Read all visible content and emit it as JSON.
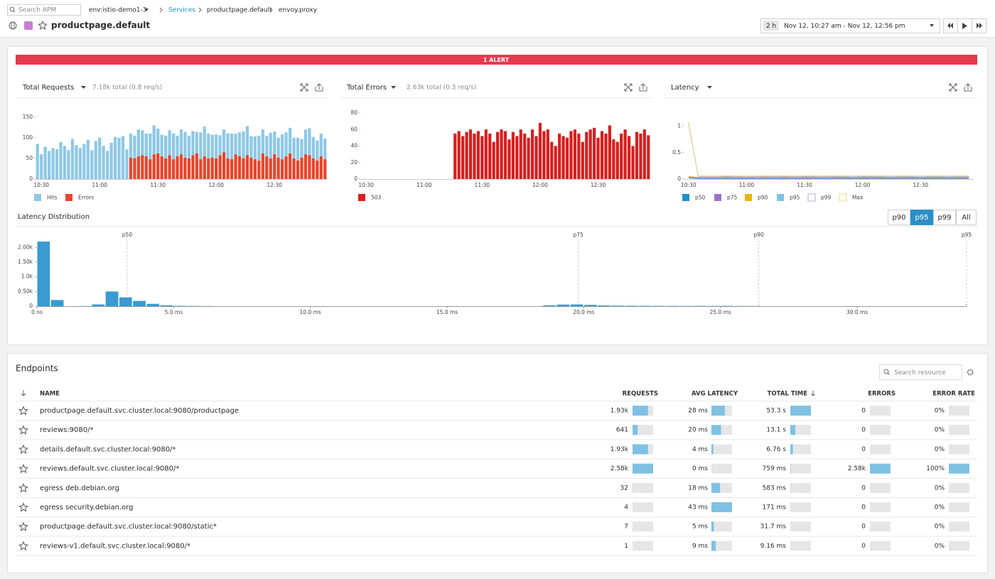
{
  "header": {
    "search_placeholder": "Search APM",
    "environment": "env:istio-demo1-3",
    "breadcrumbs": [
      "Services",
      "productpage.default",
      "envoy.proxy"
    ],
    "title": "productpage.default",
    "time_span": "2 h",
    "time_range": "Nov 12, 10:27 am - Nov 12, 12:56 pm"
  },
  "alert": "1 ALERT",
  "charts": [
    {
      "type": "bar",
      "stacked": true,
      "title": "Total Requests",
      "summary": "7.18k total (0.8 req/s)",
      "categories": [
        null,
        "10:30",
        null,
        null,
        null,
        null,
        null,
        null,
        null,
        null,
        null,
        null,
        null,
        null,
        null,
        null,
        "11:00",
        null,
        null,
        null,
        null,
        null,
        null,
        null,
        null,
        null,
        null,
        null,
        null,
        null,
        null,
        "11:30",
        null,
        null,
        null,
        null,
        null,
        null,
        null,
        null,
        null,
        null,
        null,
        null,
        null,
        null,
        "12:00",
        null,
        null,
        null,
        null,
        null,
        null,
        null,
        null,
        null,
        null,
        null,
        null,
        null,
        null,
        "12:30",
        null,
        null,
        null,
        null,
        null,
        null,
        null,
        null,
        null,
        null,
        null,
        null,
        null
      ],
      "series": [
        {
          "name": "Hits",
          "color": "#8ec8e6",
          "values": [
            85,
            60,
            78,
            68,
            75,
            72,
            90,
            80,
            70,
            97,
            82,
            75,
            85,
            95,
            70,
            92,
            100,
            80,
            68,
            88,
            102,
            100,
            104,
            72,
            58,
            55,
            65,
            60,
            55,
            62,
            70,
            60,
            52,
            55,
            60,
            63,
            50,
            60,
            62,
            55,
            58,
            52,
            65,
            72,
            60,
            55,
            58,
            48,
            55,
            60,
            62,
            50,
            58,
            65,
            70,
            52,
            55,
            60,
            58,
            50,
            62,
            55,
            48,
            60,
            58,
            62,
            50,
            55,
            45,
            60,
            65,
            52,
            48,
            55,
            50
          ]
        },
        {
          "name": "Errors",
          "color": "#e8452c",
          "values": [
            0,
            0,
            0,
            0,
            0,
            0,
            0,
            0,
            0,
            0,
            0,
            0,
            0,
            0,
            0,
            0,
            0,
            0,
            0,
            0,
            0,
            0,
            0,
            0,
            52,
            50,
            55,
            58,
            55,
            48,
            60,
            62,
            55,
            50,
            58,
            48,
            55,
            60,
            52,
            50,
            58,
            62,
            48,
            55,
            50,
            52,
            50,
            58,
            65,
            50,
            48,
            60,
            55,
            50,
            58,
            52,
            48,
            45,
            62,
            55,
            50,
            60,
            52,
            48,
            55,
            62,
            50,
            45,
            52,
            60,
            58,
            50,
            45,
            55,
            48
          ]
        }
      ],
      "ylim": [
        0,
        160
      ],
      "yticks": [
        0,
        50,
        100,
        150
      ]
    },
    {
      "type": "bar",
      "stacked": false,
      "title": "Total Errors",
      "summary": "2.63k total (0.3 req/s)",
      "categories": [
        null,
        "10:30",
        null,
        null,
        null,
        null,
        null,
        null,
        null,
        null,
        null,
        null,
        null,
        null,
        null,
        null,
        "11:00",
        null,
        null,
        null,
        null,
        null,
        null,
        null,
        null,
        null,
        null,
        null,
        null,
        null,
        null,
        "11:30",
        null,
        null,
        null,
        null,
        null,
        null,
        null,
        null,
        null,
        null,
        null,
        null,
        null,
        null,
        "12:00",
        null,
        null,
        null,
        null,
        null,
        null,
        null,
        null,
        null,
        null,
        null,
        null,
        null,
        null,
        "12:30",
        null,
        null,
        null,
        null,
        null,
        null,
        null,
        null,
        null,
        null,
        null,
        null,
        null
      ],
      "series": [
        {
          "name": "503",
          "color": "#d71f1f",
          "values": [
            0,
            0,
            0,
            0,
            0,
            0,
            0,
            0,
            0,
            0,
            0,
            0,
            0,
            0,
            0,
            0,
            0,
            0,
            0,
            0,
            0,
            0,
            0,
            0,
            55,
            58,
            52,
            57,
            60,
            55,
            58,
            52,
            60,
            55,
            45,
            57,
            60,
            58,
            48,
            57,
            52,
            60,
            55,
            50,
            60,
            52,
            68,
            58,
            60,
            45,
            40,
            55,
            52,
            50,
            58,
            60,
            55,
            45,
            57,
            60,
            62,
            50,
            58,
            55,
            65,
            48,
            45,
            55,
            60,
            52,
            40,
            57,
            55,
            60,
            53
          ]
        }
      ],
      "ylim": [
        0,
        80
      ],
      "yticks": [
        0,
        20,
        40,
        60,
        80
      ]
    },
    {
      "type": "line",
      "title": "Latency",
      "categories": [
        "10:30",
        null,
        null,
        null,
        null,
        null,
        "11:00",
        null,
        null,
        null,
        null,
        null,
        "11:30",
        null,
        null,
        null,
        null,
        null,
        "12:00",
        null,
        null,
        null,
        null,
        null,
        "12:30",
        null,
        null,
        null,
        null,
        null
      ],
      "series": [
        {
          "name": "p50",
          "color": "#1f8fc9",
          "values": [
            0.02,
            0.01,
            0.01,
            0.01,
            0.01,
            0.01,
            0.01,
            0.01,
            0.01,
            0.01,
            0.01,
            0.01,
            0.01,
            0.01,
            0.01,
            0.01,
            0.01,
            0.01,
            0.01,
            0.01,
            0.01,
            0.01,
            0.01,
            0.01,
            0.01,
            0.01,
            0.01,
            0.01,
            0.01,
            0.01
          ]
        },
        {
          "name": "p75",
          "color": "#9b72c5",
          "values": [
            0.03,
            0.02,
            0.02,
            0.02,
            0.02,
            0.02,
            0.02,
            0.02,
            0.02,
            0.02,
            0.02,
            0.02,
            0.02,
            0.02,
            0.02,
            0.02,
            0.02,
            0.02,
            0.02,
            0.02,
            0.02,
            0.02,
            0.02,
            0.02,
            0.02,
            0.02,
            0.02,
            0.02,
            0.02,
            0.02
          ]
        },
        {
          "name": "p90",
          "color": "#e6b417",
          "values": [
            0.05,
            0.03,
            0.03,
            0.03,
            0.03,
            0.03,
            0.04,
            0.03,
            0.03,
            0.03,
            0.03,
            0.03,
            0.03,
            0.03,
            0.03,
            0.03,
            0.03,
            0.03,
            0.03,
            0.03,
            0.03,
            0.03,
            0.03,
            0.03,
            0.03,
            0.03,
            0.03,
            0.03,
            0.03,
            0.03
          ]
        },
        {
          "name": "p95",
          "color": "#7fc1e3",
          "values": [
            1.05,
            0.05,
            0.05,
            0.05,
            0.04,
            0.05,
            0.05,
            0.05,
            0.04,
            0.05,
            0.04,
            0.05,
            0.04,
            0.04,
            0.05,
            0.04,
            0.04,
            0.03,
            0.04,
            0.04,
            0.04,
            0.03,
            0.04,
            0.04,
            0.03,
            0.04,
            0.04,
            0.03,
            0.04,
            0.04
          ]
        },
        {
          "name": "p99",
          "color": "#b9a9d9",
          "marker": "outline",
          "values": [
            1.06,
            0.05,
            0.05,
            0.05,
            0.05,
            0.05,
            0.05,
            0.05,
            0.05,
            0.05,
            0.05,
            0.05,
            0.05,
            0.05,
            0.05,
            0.05,
            0.05,
            0.05,
            0.05,
            0.05,
            0.05,
            0.05,
            0.05,
            0.05,
            0.05,
            0.05,
            0.05,
            0.05,
            0.05,
            0.05
          ]
        },
        {
          "name": "Max",
          "color": "#f2d98a",
          "marker": "outline",
          "values": [
            1.08,
            0.06,
            0.06,
            0.06,
            0.06,
            0.06,
            0.06,
            0.06,
            0.06,
            0.06,
            0.06,
            0.06,
            0.06,
            0.06,
            0.06,
            0.06,
            0.06,
            0.06,
            0.06,
            0.06,
            0.06,
            0.06,
            0.06,
            0.06,
            0.06,
            0.06,
            0.06,
            0.06,
            0.06,
            0.06
          ]
        }
      ],
      "ylim": [
        0,
        1.25
      ],
      "yticks": [
        0,
        0.5,
        1
      ]
    },
    {
      "type": "histogram",
      "title": "Latency Distribution",
      "color": "#3a9ad1",
      "bins": [
        0,
        0.5,
        1,
        1.5,
        2,
        2.5,
        3,
        3.5,
        4,
        4.5,
        5,
        5.5,
        6,
        6.5,
        7,
        7.5,
        8,
        8.5,
        9,
        9.5,
        10,
        10.5,
        11,
        11.5,
        12,
        12.5,
        13,
        13.5,
        14,
        14.5,
        15,
        15.5,
        16,
        16.5,
        17,
        17.5,
        18,
        18.5,
        19,
        19.5,
        20,
        20.5,
        21,
        21.5,
        22,
        22.5,
        23,
        23.5,
        24,
        24.5,
        25,
        25.5,
        26,
        26.5,
        27,
        27.5,
        28,
        28.5,
        29,
        29.5,
        30,
        30.5,
        31,
        31.5,
        32,
        32.5,
        33,
        33.5,
        34
      ],
      "counts": [
        2200,
        210,
        0,
        5,
        60,
        500,
        300,
        180,
        80,
        30,
        12,
        8,
        5,
        0,
        0,
        0,
        0,
        0,
        0,
        0,
        0,
        0,
        0,
        0,
        0,
        0,
        0,
        0,
        0,
        0,
        0,
        0,
        0,
        0,
        0,
        0,
        0,
        30,
        55,
        60,
        45,
        25,
        18,
        15,
        12,
        10,
        10,
        8,
        10,
        8,
        10,
        6,
        5,
        0,
        0,
        0,
        0,
        0,
        0,
        0,
        0,
        0,
        0,
        0,
        0,
        0,
        0,
        0
      ],
      "xlim": [
        0,
        34
      ],
      "xticks": [
        {
          "value": 0,
          "label": "0 ns"
        },
        {
          "value": 5,
          "label": "5.0 ms"
        },
        {
          "value": 10,
          "label": "10.0 ms"
        },
        {
          "value": 15,
          "label": "15.0 ms"
        },
        {
          "value": 20,
          "label": "20.0 ms"
        },
        {
          "value": 25,
          "label": "25.0 ms"
        },
        {
          "value": 30,
          "label": "30.0 ms"
        }
      ],
      "ylim": [
        0,
        2250
      ],
      "yticks": [
        0,
        {
          "value": 500,
          "label": "0.50k"
        },
        {
          "value": 1000,
          "label": "1.0k"
        },
        {
          "value": 1500,
          "label": "1.50k"
        },
        {
          "value": 2000,
          "label": "2.00k"
        }
      ],
      "percentiles": [
        {
          "name": "p50",
          "value": 3.3
        },
        {
          "name": "p75",
          "value": 19.8
        },
        {
          "name": "p90",
          "value": 26.4
        },
        {
          "name": "p95",
          "value": 34
        }
      ],
      "buttons": [
        "p90",
        "p95",
        "p99",
        "All"
      ],
      "active_button": "p95"
    }
  ],
  "endpoints": {
    "title": "Endpoints",
    "search_placeholder": "Search resource",
    "columns": [
      {
        "header": "NAME",
        "values": [
          "productpage.default.svc.cluster.local:9080/productpage",
          "reviews:9080/*",
          "details.default.svc.cluster.local:9080/*",
          "reviews.default.svc.cluster.local:9080/*",
          "egress deb.debian.org",
          "egress security.debian.org",
          "productpage.default.svc.cluster.local:9080/static*",
          "reviews-v1.default.svc.cluster.local:9080/*"
        ]
      },
      {
        "header": "REQUESTS",
        "values": [
          1930,
          641,
          1930,
          2580,
          32,
          4,
          7,
          1
        ],
        "value_labels": [
          "1.93k",
          "641",
          "1.93k",
          "2.58k",
          "32",
          "4",
          "7",
          "1"
        ]
      },
      {
        "header": "AVG LATENCY",
        "values": [
          28,
          20,
          4,
          0,
          18,
          43,
          5,
          9
        ],
        "value_labels": [
          "28 ms",
          "20 ms",
          "4 ms",
          "0 ms",
          "18 ms",
          "43 ms",
          "5 ms",
          "9 ms"
        ]
      },
      {
        "header": "TOTAL TIME",
        "values": [
          53.3,
          13.1,
          6.76,
          0.759,
          0.583,
          0.171,
          0.0317,
          0.00916
        ],
        "value_labels": [
          "53.3 s",
          "13.1 s",
          "6.76 s",
          "759 ms",
          "583 ms",
          "171 ms",
          "31.7 ms",
          "9.16 ms"
        ]
      },
      {
        "header": "ERRORS",
        "values": [
          0,
          0,
          0,
          2580,
          0,
          0,
          0,
          0
        ],
        "value_labels": [
          "0",
          "0",
          "0",
          "2.58k",
          "0",
          "0",
          "0",
          "0"
        ]
      },
      {
        "header": "ERROR RATE",
        "values": [
          0,
          0,
          0,
          100,
          0,
          0,
          0,
          0
        ],
        "value_labels": [
          "0%",
          "0%",
          "0%",
          "100%",
          "0%",
          "0%",
          "0%",
          "0%"
        ]
      }
    ]
  }
}
